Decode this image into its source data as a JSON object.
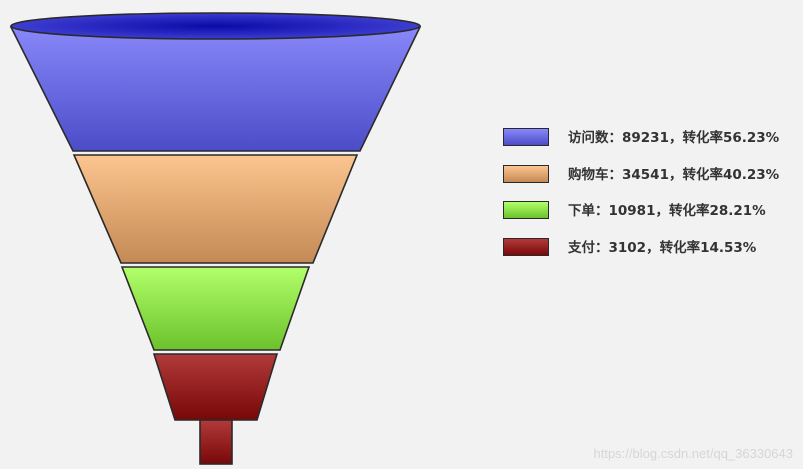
{
  "chart_data": {
    "type": "funnel",
    "stages": [
      {
        "name": "访问数",
        "value": 89231,
        "rate": "56.23%",
        "label": "访问数：89231，转化率56.23%",
        "color_top": "#8888fa",
        "color_bottom": "#4c4cc8"
      },
      {
        "name": "购物车",
        "value": 34541,
        "rate": "40.23%",
        "label": "购物车：34541，转化率40.23%",
        "color_top": "#fcc48e",
        "color_bottom": "#c48a55"
      },
      {
        "name": "下单",
        "value": 10981,
        "rate": "28.21%",
        "label": "下单：10981，转化率28.21%",
        "color_top": "#b2ff6a",
        "color_bottom": "#6cc22c"
      },
      {
        "name": "支付",
        "value": 3102,
        "rate": "14.53%",
        "label": "支付：3102，转化率14.53%",
        "color_top": "#b23a3a",
        "color_bottom": "#780808"
      }
    ],
    "rim_color": "#0a0aa8"
  },
  "watermark": "https://blog.csdn.net/qq_36330643"
}
